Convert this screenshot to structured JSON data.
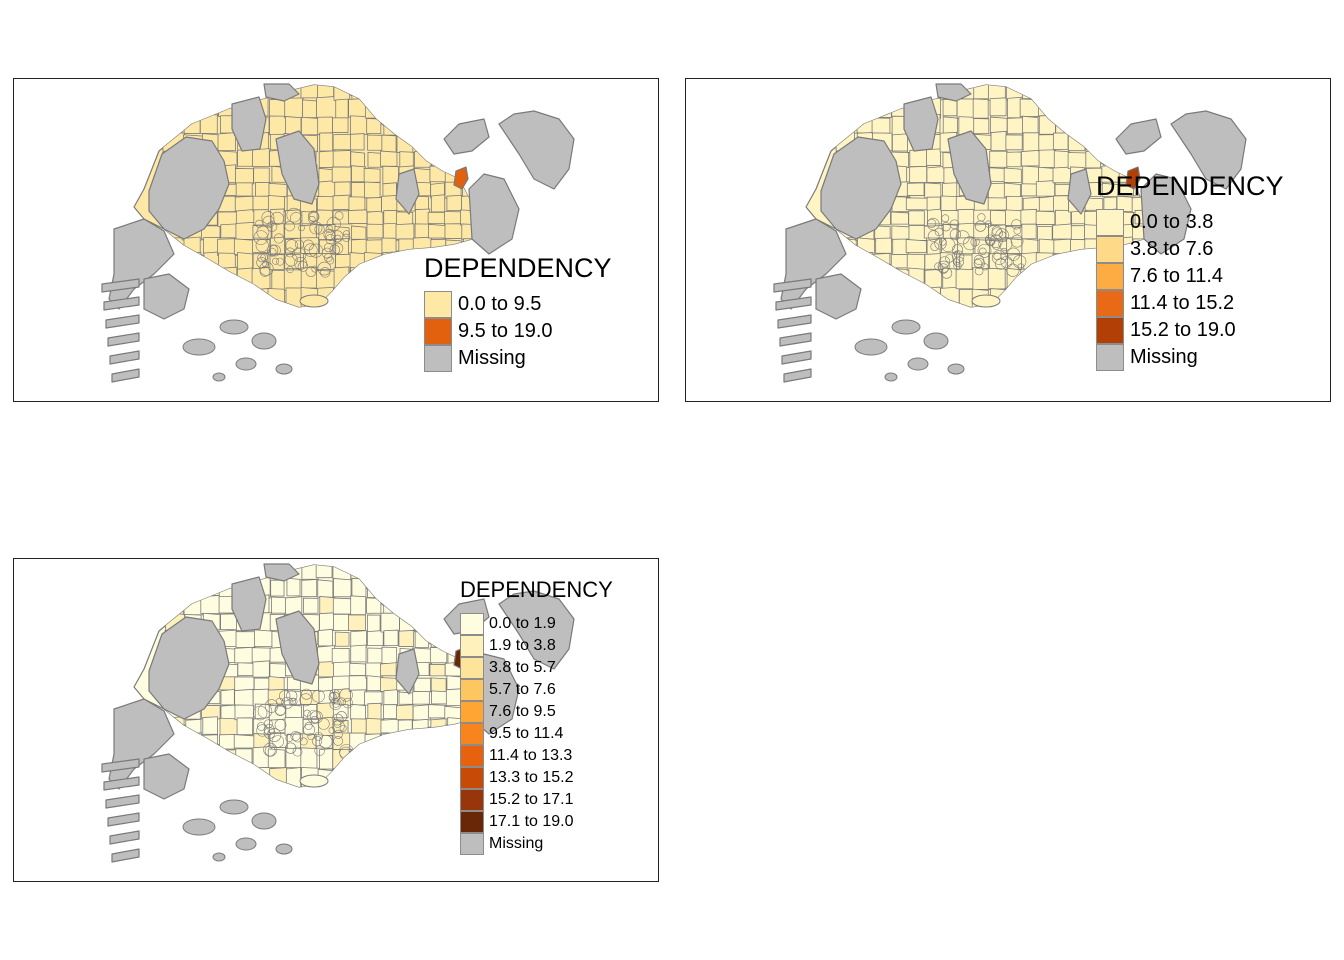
{
  "maps": [
    {
      "legend_title": "DEPENDENCY",
      "classes": [
        {
          "label": "0.0 to 9.5",
          "color": "#fee8a6"
        },
        {
          "label": "9.5 to 19.0",
          "color": "#e2610e"
        },
        {
          "label": "Missing",
          "color": "#bebebe"
        }
      ],
      "base_fill": "#fee8a6",
      "hot_fill": "#e2610e"
    },
    {
      "legend_title": "DEPENDENCY",
      "classes": [
        {
          "label": "0.0 to 3.8",
          "color": "#fff4c4"
        },
        {
          "label": "3.8 to 7.6",
          "color": "#fed987"
        },
        {
          "label": "7.6 to 11.4",
          "color": "#fdab43"
        },
        {
          "label": "11.4 to 15.2",
          "color": "#e86a17"
        },
        {
          "label": "15.2 to 19.0",
          "color": "#b23f05"
        },
        {
          "label": "Missing",
          "color": "#bebebe"
        }
      ],
      "base_fill": "#fff4c4",
      "hot_fill": "#b23f05"
    },
    {
      "legend_title": "DEPENDENCY",
      "classes": [
        {
          "label": "0.0 to 1.9",
          "color": "#fffde0"
        },
        {
          "label": "1.9 to 3.8",
          "color": "#fff1bc"
        },
        {
          "label": "3.8 to 5.7",
          "color": "#fee39a"
        },
        {
          "label": "5.7 to 7.6",
          "color": "#fec661"
        },
        {
          "label": "7.6 to 9.5",
          "color": "#fea533"
        },
        {
          "label": "9.5 to 11.4",
          "color": "#f7841c"
        },
        {
          "label": "11.4 to 13.3",
          "color": "#e6620f"
        },
        {
          "label": "13.3 to 15.2",
          "color": "#c74a06"
        },
        {
          "label": "15.2 to 17.1",
          "color": "#98350a"
        },
        {
          "label": "17.1 to 19.0",
          "color": "#6a2708"
        },
        {
          "label": "Missing",
          "color": "#bebebe"
        }
      ],
      "base_fill": "#fffde0",
      "hot_fill": "#6a2708"
    }
  ],
  "colors": {
    "missing": "#bebebe",
    "border": "#7a7a7a",
    "frame": "#222222"
  }
}
